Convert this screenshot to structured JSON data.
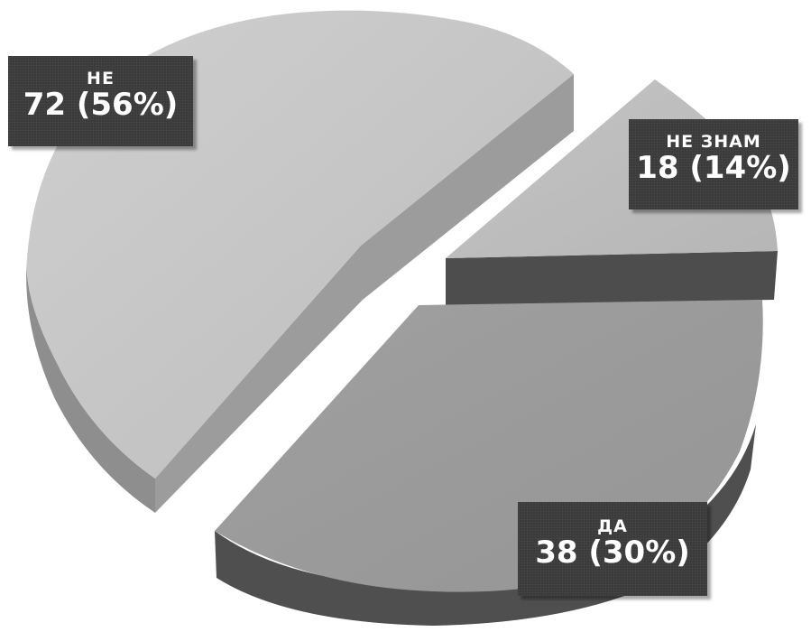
{
  "chart_data": {
    "type": "pie",
    "variant": "3d-exploded",
    "slices": [
      {
        "name": "НЕ",
        "value": 72,
        "percent": 56,
        "label": "72 (56%)",
        "color": "#c2c2c2",
        "side_color": "#8c8c8c"
      },
      {
        "name": "НЕ ЗНАМ",
        "value": 18,
        "percent": 14,
        "label": "18 (14%)",
        "color": "#bdbdbd",
        "side_color": "#4a4a4a"
      },
      {
        "name": "ДА",
        "value": 38,
        "percent": 30,
        "label": "38 (30%)",
        "color": "#9a9a9a",
        "side_color": "#4f4f4f"
      }
    ],
    "legend": "none"
  }
}
